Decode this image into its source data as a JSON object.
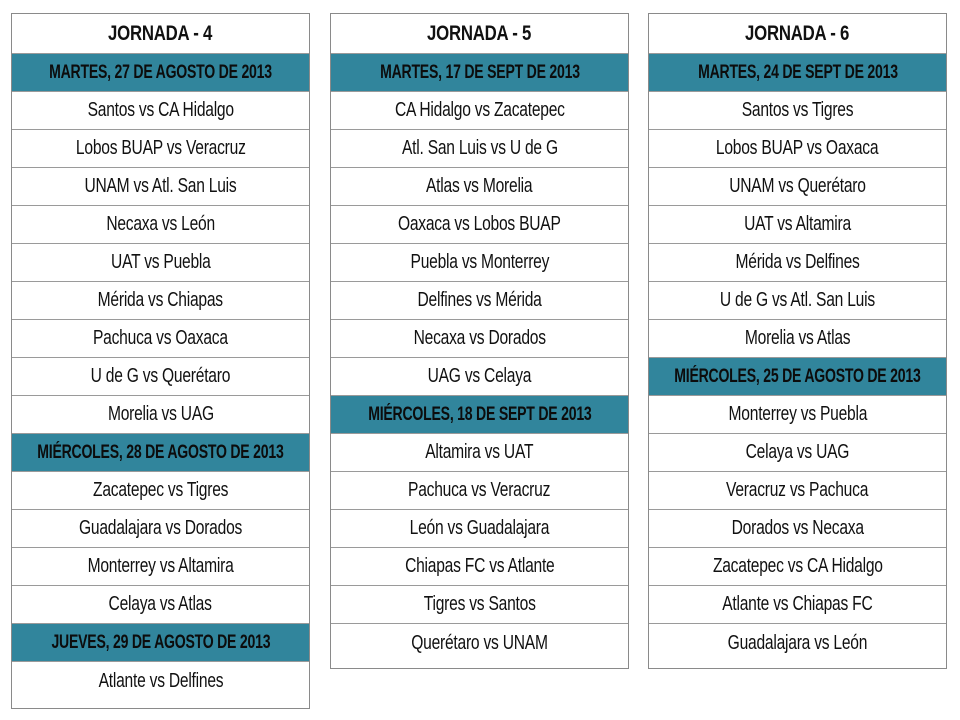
{
  "columns": [
    {
      "title": "JORNADA - 4",
      "rows": [
        {
          "type": "date",
          "text": "MARTES, 27 DE AGOSTO DE 2013"
        },
        {
          "type": "match",
          "text": "Santos vs CA Hidalgo"
        },
        {
          "type": "match",
          "text": "Lobos BUAP vs Veracruz"
        },
        {
          "type": "match",
          "text": "UNAM vs Atl. San Luis"
        },
        {
          "type": "match",
          "text": "Necaxa vs León"
        },
        {
          "type": "match",
          "text": "UAT vs Puebla"
        },
        {
          "type": "match",
          "text": "Mérida vs Chiapas"
        },
        {
          "type": "match",
          "text": "Pachuca vs Oaxaca"
        },
        {
          "type": "match",
          "text": "U de G vs Querétaro"
        },
        {
          "type": "match",
          "text": "Morelia vs UAG"
        },
        {
          "type": "date",
          "text": "MIÉRCOLES, 28 DE AGOSTO DE 2013"
        },
        {
          "type": "match",
          "text": "Zacatepec vs Tigres"
        },
        {
          "type": "match",
          "text": "Guadalajara vs Dorados"
        },
        {
          "type": "match",
          "text": "Monterrey vs Altamira"
        },
        {
          "type": "match",
          "text": "Celaya vs Atlas"
        },
        {
          "type": "date",
          "text": "JUEVES, 29 DE AGOSTO DE 2013"
        },
        {
          "type": "match",
          "text": "Atlante vs Delfines"
        }
      ]
    },
    {
      "title": "JORNADA - 5",
      "rows": [
        {
          "type": "date",
          "text": "MARTES, 17 DE SEPT DE 2013"
        },
        {
          "type": "match",
          "text": "CA Hidalgo vs Zacatepec"
        },
        {
          "type": "match",
          "text": "Atl. San Luis vs U de G"
        },
        {
          "type": "match",
          "text": "Atlas vs Morelia"
        },
        {
          "type": "match",
          "text": "Oaxaca vs Lobos BUAP"
        },
        {
          "type": "match",
          "text": "Puebla vs Monterrey"
        },
        {
          "type": "match",
          "text": "Delfines vs Mérida"
        },
        {
          "type": "match",
          "text": "Necaxa vs Dorados"
        },
        {
          "type": "match",
          "text": "UAG vs Celaya"
        },
        {
          "type": "date",
          "text": "MIÉRCOLES, 18 DE SEPT DE 2013"
        },
        {
          "type": "match",
          "text": "Altamira vs UAT"
        },
        {
          "type": "match",
          "text": "Pachuca vs Veracruz"
        },
        {
          "type": "match",
          "text": "León vs Guadalajara"
        },
        {
          "type": "match",
          "text": "Chiapas FC vs Atlante"
        },
        {
          "type": "match",
          "text": "Tigres vs Santos"
        },
        {
          "type": "match",
          "text": "Querétaro vs UNAM"
        }
      ]
    },
    {
      "title": "JORNADA - 6",
      "rows": [
        {
          "type": "date",
          "text": "MARTES, 24 DE SEPT DE 2013"
        },
        {
          "type": "match",
          "text": "Santos vs Tigres"
        },
        {
          "type": "match",
          "text": "Lobos BUAP vs Oaxaca"
        },
        {
          "type": "match",
          "text": "UNAM vs Querétaro"
        },
        {
          "type": "match",
          "text": "UAT vs Altamira"
        },
        {
          "type": "match",
          "text": "Mérida vs Delfines"
        },
        {
          "type": "match",
          "text": "U de G vs Atl. San Luis"
        },
        {
          "type": "match",
          "text": "Morelia vs Atlas"
        },
        {
          "type": "date",
          "text": "MIÉRCOLES, 25 DE AGOSTO DE 2013"
        },
        {
          "type": "match",
          "text": "Monterrey vs Puebla"
        },
        {
          "type": "match",
          "text": "Celaya vs UAG"
        },
        {
          "type": "match",
          "text": "Veracruz vs Pachuca"
        },
        {
          "type": "match",
          "text": "Dorados vs Necaxa"
        },
        {
          "type": "match",
          "text": "Zacatepec vs CA Hidalgo"
        },
        {
          "type": "match",
          "text": "Atlante vs Chiapas FC"
        },
        {
          "type": "match",
          "text": "Guadalajara vs León"
        }
      ]
    }
  ]
}
